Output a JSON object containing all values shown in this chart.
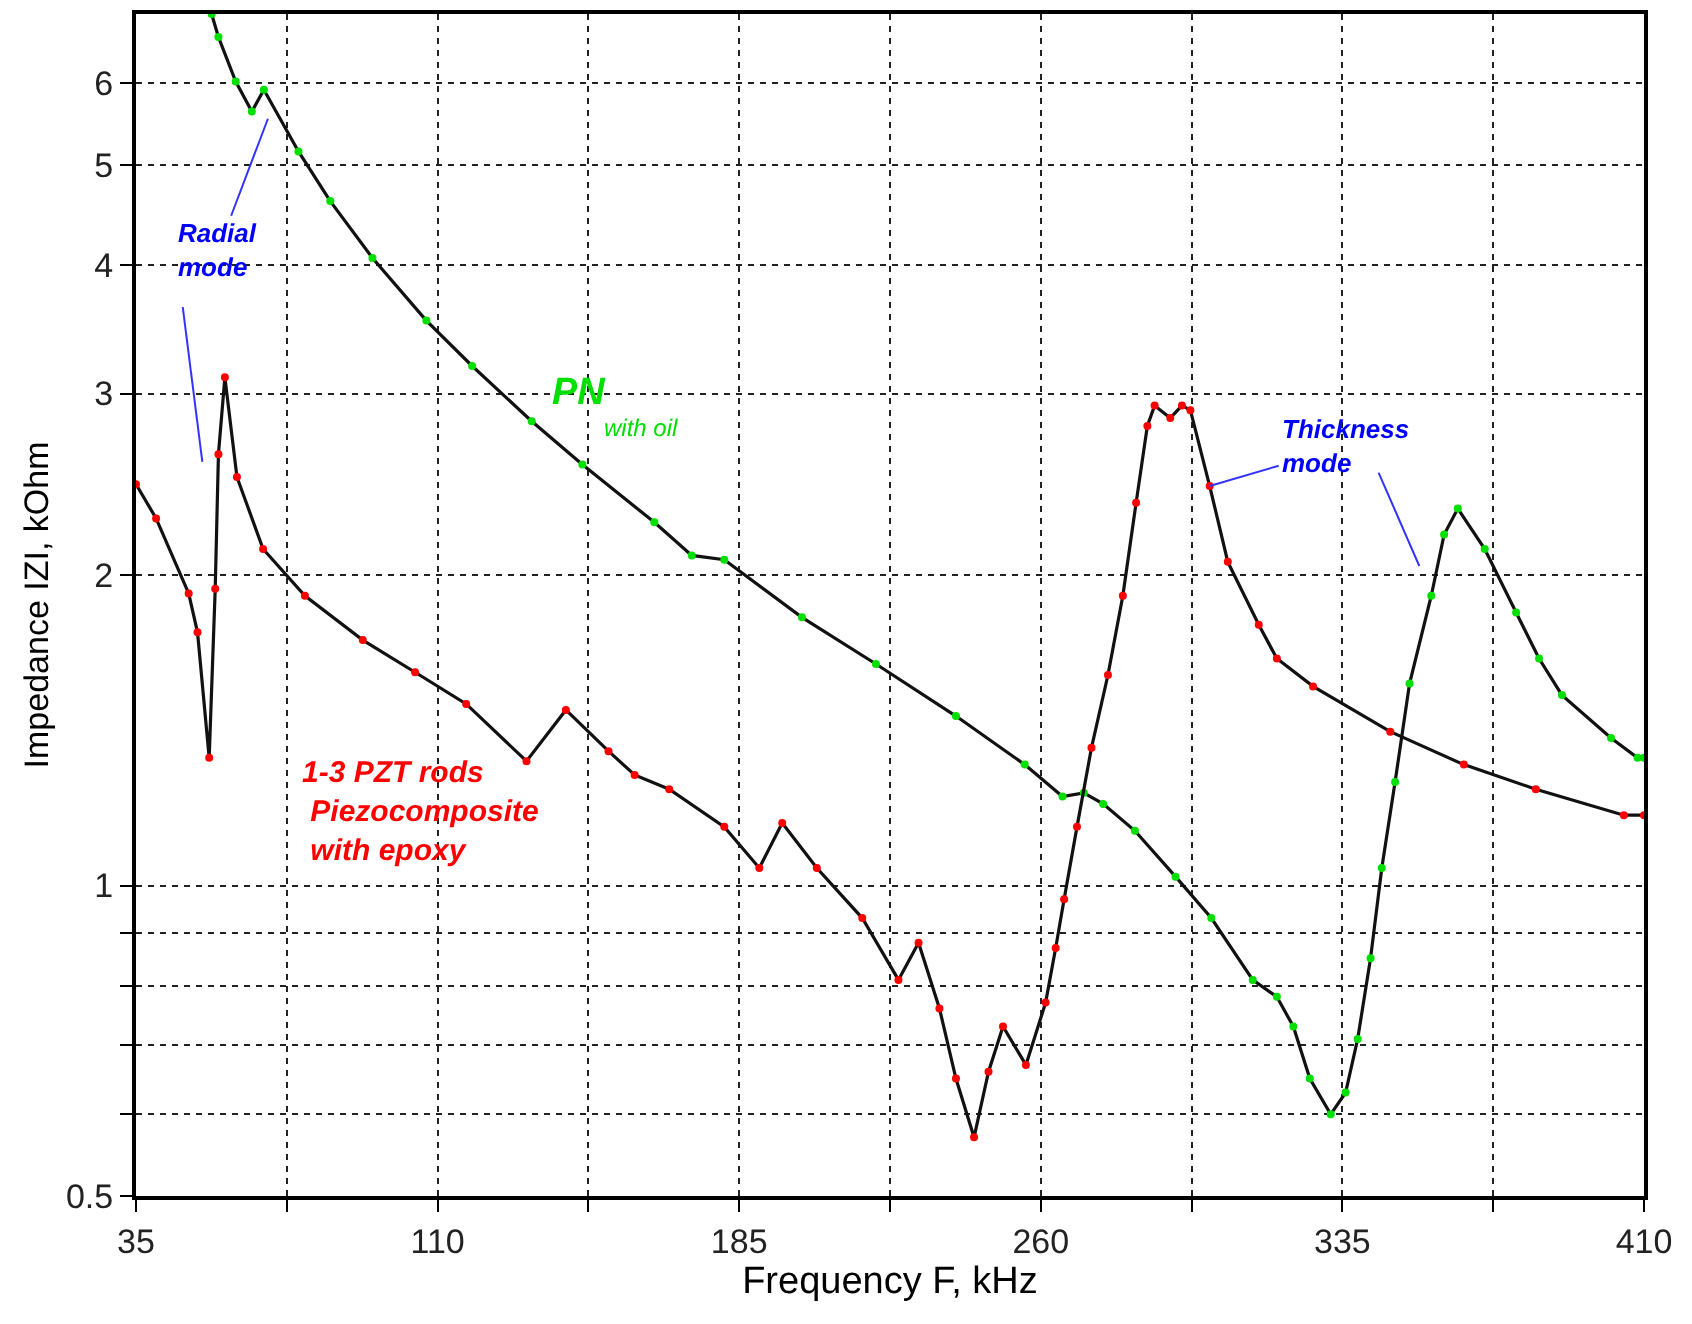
{
  "chart_data": {
    "type": "line",
    "xlabel": "Frequency F, kHz",
    "ylabel": "Impedance IZI, kOhm",
    "log": "y",
    "grid": true,
    "legend": false,
    "marker": "circle",
    "line_style": "solid",
    "xlim": [
      35,
      410
    ],
    "xticks": [
      35,
      {
        "value": 72.5,
        "label": null
      },
      110,
      {
        "value": 147.5,
        "label": null
      },
      185,
      {
        "value": 222.5,
        "label": null
      },
      260,
      {
        "value": 297.5,
        "label": null
      },
      335,
      {
        "value": 372.5,
        "label": null
      },
      410
    ],
    "ylim": [
      0.5,
      7
    ],
    "yticks": [
      0.5,
      {
        "value": 0.6,
        "label": null
      },
      {
        "value": 0.7,
        "label": null
      },
      {
        "value": 0.8,
        "label": null
      },
      {
        "value": 0.9,
        "label": null
      },
      1,
      2,
      3,
      4,
      5,
      6
    ],
    "annotations": [
      {
        "text": "Radial\nmode",
        "x": 67.8,
        "y": 5.54
      },
      {
        "text": "Thickness\nmode",
        "x": 302.0,
        "y": 2.44
      }
    ],
    "series": [
      {
        "name": "PN\nwith oil",
        "color": "#00e000",
        "x": [
          53.8,
          55.5,
          59.8,
          63.8,
          66.8,
          75.4,
          83.3,
          93.8,
          107.2,
          118.6,
          133.4,
          146.0,
          163.9,
          173.2,
          181.3,
          200.6,
          219.0,
          238.9,
          256.0,
          265.4,
          270.7,
          275.5,
          283.4,
          293.5,
          302.4,
          312.7,
          318.7,
          322.8,
          326.9,
          332.1,
          335.8,
          338.8,
          342.0,
          344.8,
          348.1,
          351.7,
          357.1,
          360.3,
          363.7,
          370.4,
          378.2,
          383.9,
          389.6,
          401.8,
          408.4,
          410
        ],
        "values": [
          7.0,
          6.65,
          6.02,
          5.63,
          5.91,
          5.15,
          4.61,
          4.06,
          3.53,
          3.19,
          2.82,
          2.56,
          2.25,
          2.09,
          2.07,
          1.82,
          1.64,
          1.46,
          1.31,
          1.22,
          1.23,
          1.2,
          1.13,
          1.02,
          0.93,
          0.81,
          0.78,
          0.73,
          0.65,
          0.6,
          0.63,
          0.71,
          0.85,
          1.04,
          1.26,
          1.57,
          1.91,
          2.19,
          2.32,
          2.12,
          1.84,
          1.66,
          1.53,
          1.39,
          1.33,
          1.33
        ]
      },
      {
        "name": "1-3 PZT rods\nPiezocomposite\nwith epoxy",
        "color": "#ff0000",
        "x": [
          35,
          40.0,
          48.1,
          50.3,
          53.2,
          54.7,
          55.5,
          57.1,
          60.1,
          66.6,
          77.0,
          91.4,
          104.4,
          117.1,
          132.1,
          141.9,
          152.5,
          159.0,
          167.6,
          181.3,
          190.0,
          195.7,
          204.3,
          215.6,
          224.6,
          229.6,
          234.8,
          238.9,
          243.4,
          247.0,
          250.6,
          256.3,
          261.2,
          263.7,
          265.8,
          269.0,
          272.6,
          276.7,
          280.4,
          283.7,
          286.5,
          288.3,
          292.2,
          295.1,
          297.2,
          302.0,
          306.5,
          314.2,
          318.7,
          327.7,
          346.9,
          365.2,
          383.1,
          405.0,
          410
        ],
        "values": [
          2.45,
          2.27,
          1.92,
          1.76,
          1.33,
          1.94,
          2.62,
          3.11,
          2.49,
          2.12,
          1.91,
          1.73,
          1.61,
          1.5,
          1.32,
          1.48,
          1.35,
          1.28,
          1.24,
          1.14,
          1.04,
          1.15,
          1.04,
          0.93,
          0.81,
          0.88,
          0.76,
          0.65,
          0.57,
          0.66,
          0.73,
          0.67,
          0.77,
          0.87,
          0.97,
          1.14,
          1.36,
          1.6,
          1.91,
          2.35,
          2.79,
          2.92,
          2.84,
          2.92,
          2.89,
          2.44,
          2.06,
          1.79,
          1.66,
          1.56,
          1.41,
          1.31,
          1.24,
          1.17,
          1.17
        ]
      }
    ]
  }
}
